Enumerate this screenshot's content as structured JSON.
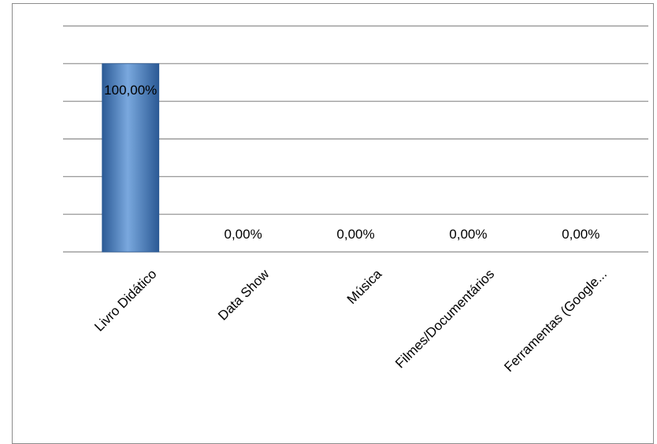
{
  "chart_data": {
    "type": "bar",
    "categories": [
      "Livro Didático",
      "Data Show",
      "Música",
      "Filmes/Documentários",
      "Ferramentas (Google..."
    ],
    "values": [
      100,
      0,
      0,
      0,
      0
    ],
    "data_labels": [
      "100,00%",
      "0,00%",
      "0,00%",
      "0,00%",
      "0,00%"
    ],
    "title": "",
    "xlabel": "",
    "ylabel": "",
    "ylim": [
      0,
      120
    ],
    "gridlines": true,
    "legend": "none",
    "bar_color": "#4a7fc4",
    "bar_color_dark": "#2b5a95",
    "bar_color_light": "#7aa8de"
  }
}
